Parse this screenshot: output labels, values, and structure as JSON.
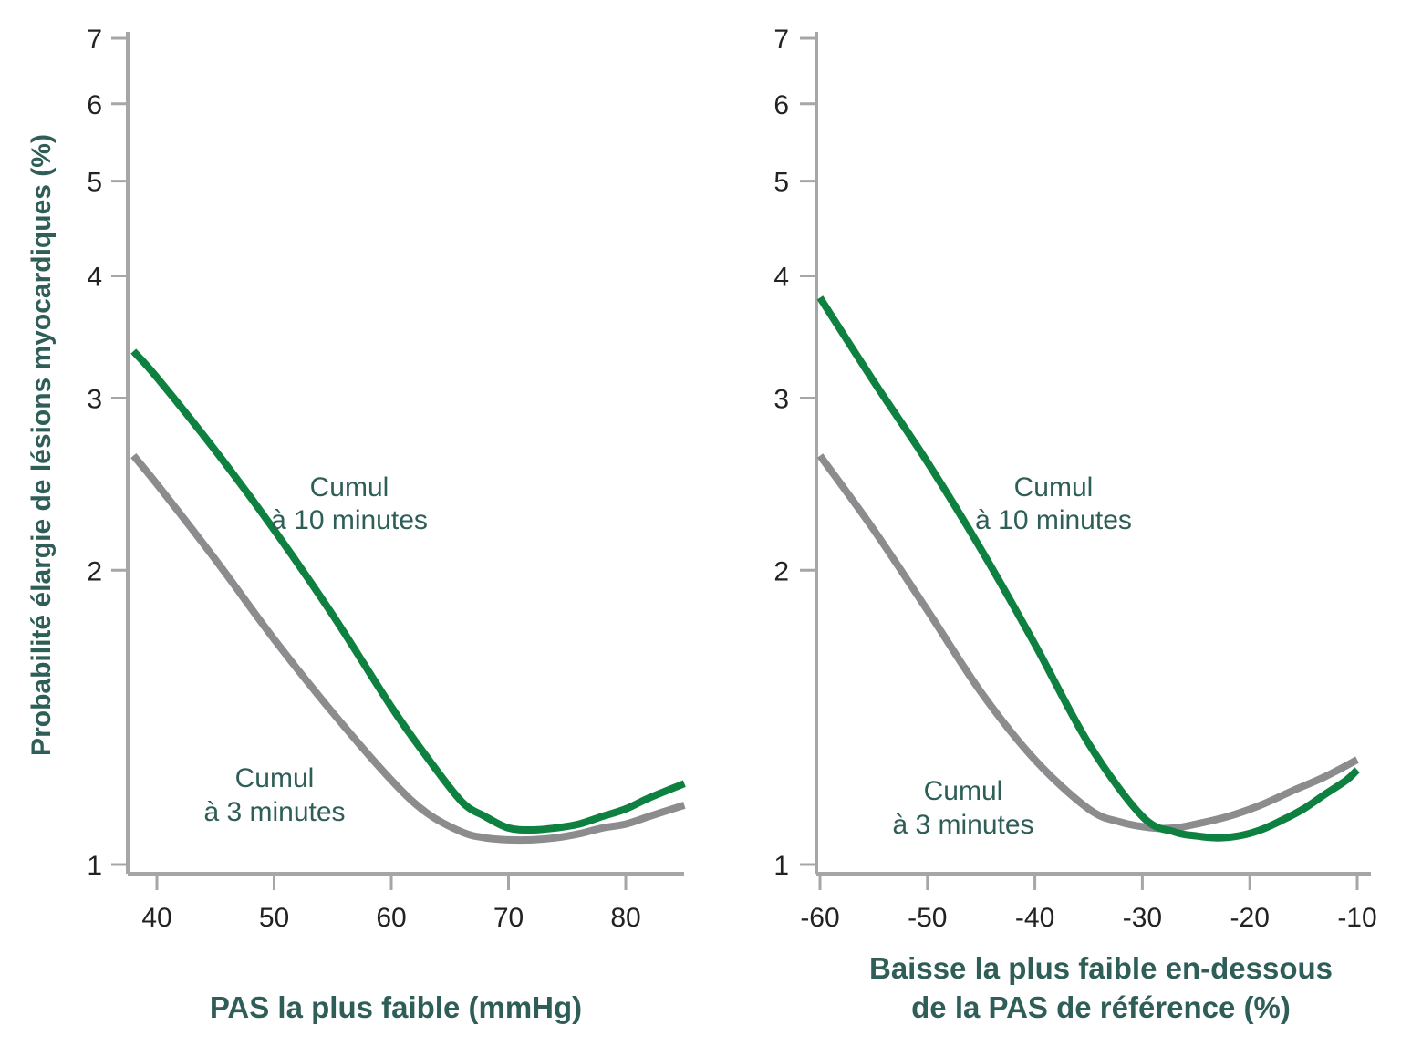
{
  "colors": {
    "accent_green": "#0e8040",
    "series_gray": "#8c8c8e",
    "axis_gray": "#a6a6a6",
    "text_teal": "#2f5e58"
  },
  "ylabel": "Probabilité élargie de lésions myocardiques (%)",
  "chart_data": [
    {
      "type": "line",
      "xlabel": "PAS la plus faible (mmHg)",
      "ylabel": "Probabilité élargie de lésions myocardiques (%)",
      "xlim": [
        38,
        85
      ],
      "ylim": [
        1,
        7
      ],
      "yscale": "log",
      "xticks": [
        40,
        50,
        60,
        70,
        80
      ],
      "yticks": [
        1,
        2,
        3,
        4,
        5,
        6,
        7
      ],
      "grid": false,
      "series": [
        {
          "name": "Cumul à 10 minutes",
          "color": "#0e8040",
          "x": [
            38,
            40,
            45,
            50,
            55,
            60,
            63,
            66,
            68,
            70,
            72,
            74,
            76,
            78,
            80,
            82,
            85
          ],
          "y": [
            3.35,
            3.15,
            2.65,
            2.2,
            1.8,
            1.45,
            1.29,
            1.16,
            1.12,
            1.09,
            1.085,
            1.09,
            1.1,
            1.12,
            1.14,
            1.17,
            1.21
          ]
        },
        {
          "name": "Cumul à 3 minutes",
          "color": "#8c8c8e",
          "x": [
            38,
            40,
            45,
            50,
            55,
            60,
            63,
            66,
            68,
            70,
            72,
            74,
            76,
            78,
            80,
            82,
            85
          ],
          "y": [
            2.62,
            2.45,
            2.05,
            1.7,
            1.43,
            1.22,
            1.13,
            1.08,
            1.065,
            1.06,
            1.06,
            1.065,
            1.075,
            1.09,
            1.1,
            1.12,
            1.15
          ]
        }
      ],
      "annotations": [
        {
          "lines": [
            "Cumul",
            "à 10 minutes"
          ],
          "series": "Cumul à 10 minutes"
        },
        {
          "lines": [
            "Cumul",
            "à 3 minutes"
          ],
          "series": "Cumul à 3 minutes"
        }
      ]
    },
    {
      "type": "line",
      "xlabel": "Baisse la plus faible en-dessous de la PAS de référence (%)",
      "xlabel_lines": [
        "Baisse la plus faible en-dessous",
        "de la PAS de référence (%)"
      ],
      "ylim": [
        1,
        7
      ],
      "yscale": "log",
      "xlim": [
        -60,
        -10
      ],
      "xticks": [
        -60,
        -50,
        -40,
        -30,
        -20,
        -10
      ],
      "yticks": [
        1,
        2,
        3,
        4,
        5,
        6,
        7
      ],
      "grid": false,
      "series": [
        {
          "name": "Cumul à 10 minutes",
          "color": "#0e8040",
          "x": [
            -60,
            -55,
            -50,
            -45,
            -40,
            -35,
            -30,
            -27,
            -25,
            -23,
            -21,
            -19,
            -17,
            -15,
            -13,
            -11,
            -10
          ],
          "y": [
            3.8,
            3.12,
            2.58,
            2.1,
            1.68,
            1.33,
            1.12,
            1.08,
            1.07,
            1.065,
            1.07,
            1.085,
            1.11,
            1.14,
            1.18,
            1.22,
            1.25
          ]
        },
        {
          "name": "Cumul à 3 minutes",
          "color": "#8c8c8e",
          "x": [
            -60,
            -55,
            -50,
            -45,
            -40,
            -35,
            -32,
            -29,
            -27,
            -25,
            -22,
            -19,
            -16,
            -13,
            -10
          ],
          "y": [
            2.62,
            2.2,
            1.82,
            1.5,
            1.28,
            1.14,
            1.105,
            1.09,
            1.09,
            1.1,
            1.12,
            1.15,
            1.19,
            1.23,
            1.28
          ]
        }
      ],
      "annotations": [
        {
          "lines": [
            "Cumul",
            "à 10 minutes"
          ],
          "series": "Cumul à 10 minutes"
        },
        {
          "lines": [
            "Cumul",
            "à 3 minutes"
          ],
          "series": "Cumul à 3 minutes"
        }
      ]
    }
  ]
}
